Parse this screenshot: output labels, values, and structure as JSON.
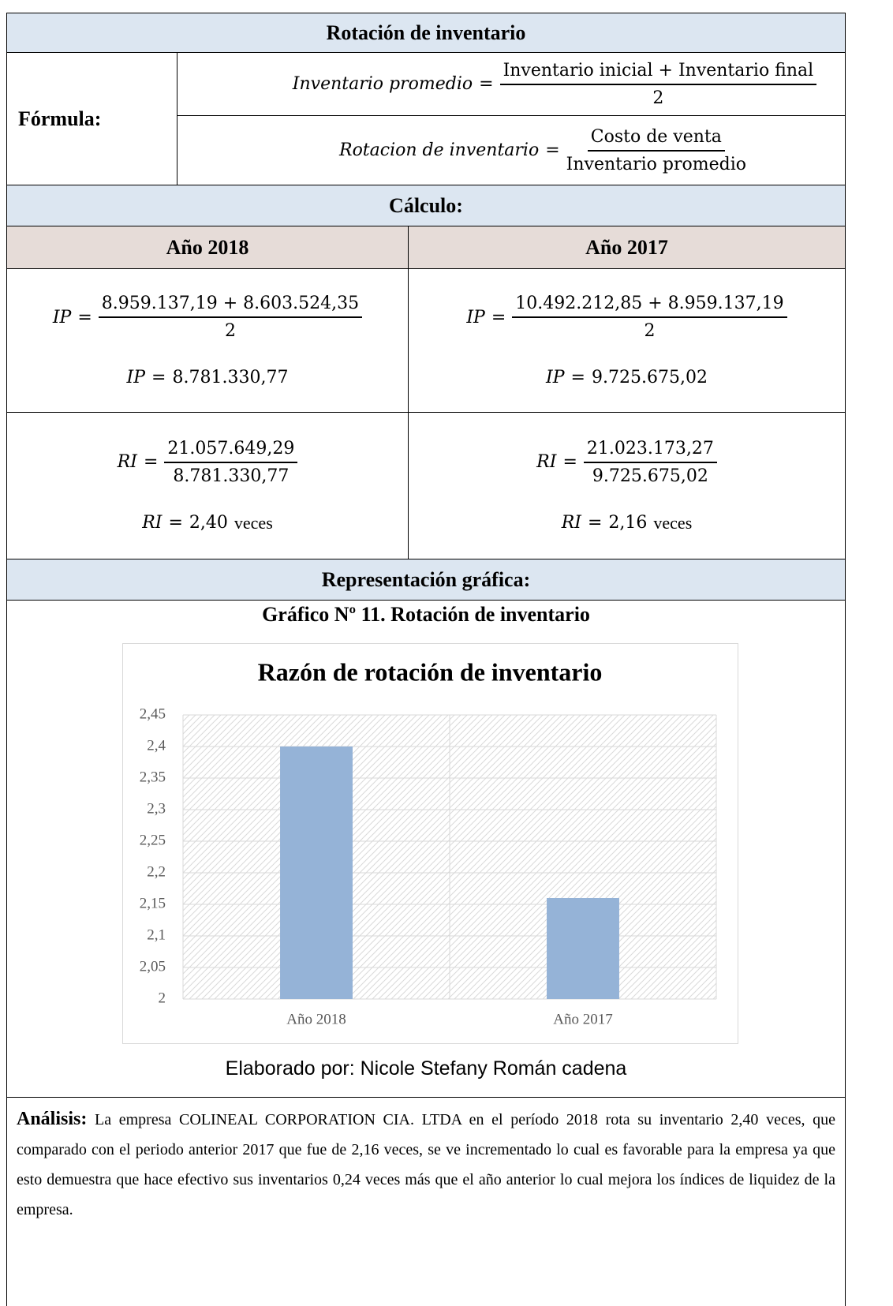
{
  "title": "Rotación de inventario",
  "formula": {
    "label": "Fórmula:",
    "rows": [
      {
        "lhs": "Inventario promedio",
        "op": "=",
        "numerator": "Inventario inicial + Inventario final",
        "denominator": "2"
      },
      {
        "lhs": "Rotacion de inventario",
        "op": "=",
        "numerator": "Costo de venta",
        "denominator": "Inventario promedio"
      }
    ]
  },
  "calculation": {
    "heading": "Cálculo:",
    "columns": [
      {
        "year": "Año 2018",
        "ip": {
          "lhs": "IP",
          "op": "=",
          "numerator": "8.959.137,19 + 8.603.524,35",
          "denominator": "2",
          "result": "8.781.330,77"
        },
        "ri": {
          "lhs": "RI",
          "op": "=",
          "numerator": "21.057.649,29",
          "denominator": "8.781.330,77",
          "result": "2,40",
          "unit": "veces"
        }
      },
      {
        "year": "Año 2017",
        "ip": {
          "lhs": "IP",
          "op": "=",
          "numerator": "10.492.212,85 + 8.959.137,19",
          "denominator": "2",
          "result": "9.725.675,02"
        },
        "ri": {
          "lhs": "RI",
          "op": "=",
          "numerator": "21.023.173,27",
          "denominator": "9.725.675,02",
          "result": "2,16",
          "unit": "veces"
        }
      }
    ]
  },
  "graphic": {
    "heading": "Representación gráfica:",
    "caption": "Gráfico Nº 11. Rotación de inventario",
    "source": "Elaborado por: Nicole Stefany Román cadena"
  },
  "chart_data": {
    "type": "bar",
    "title": "Razón de rotación de inventario",
    "categories": [
      "Año 2018",
      "Año 2017"
    ],
    "values": [
      2.4,
      2.16
    ],
    "color": "#95b3d7",
    "ylim": [
      2,
      2.45
    ],
    "yticks": [
      {
        "value": 2.45,
        "label": "2,45"
      },
      {
        "value": 2.4,
        "label": "2,4"
      },
      {
        "value": 2.35,
        "label": "2,35"
      },
      {
        "value": 2.3,
        "label": "2,3"
      },
      {
        "value": 2.25,
        "label": "2,25"
      },
      {
        "value": 2.2,
        "label": "2,2"
      },
      {
        "value": 2.15,
        "label": "2,15"
      },
      {
        "value": 2.1,
        "label": "2,1"
      },
      {
        "value": 2.05,
        "label": "2,05"
      },
      2
    ],
    "grid": true
  },
  "analysis": {
    "label": "Análisis:",
    "text": "La empresa COLINEAL CORPORATION CIA. LTDA en el período 2018 rota su inventario 2,40 veces, que comparado con el periodo anterior 2017 que fue de 2,16 veces, se ve incrementado lo cual es favorable para la empresa ya que esto demuestra que hace efectivo sus inventarios 0,24 veces más que el año anterior lo cual mejora los índices de liquidez de la empresa."
  }
}
